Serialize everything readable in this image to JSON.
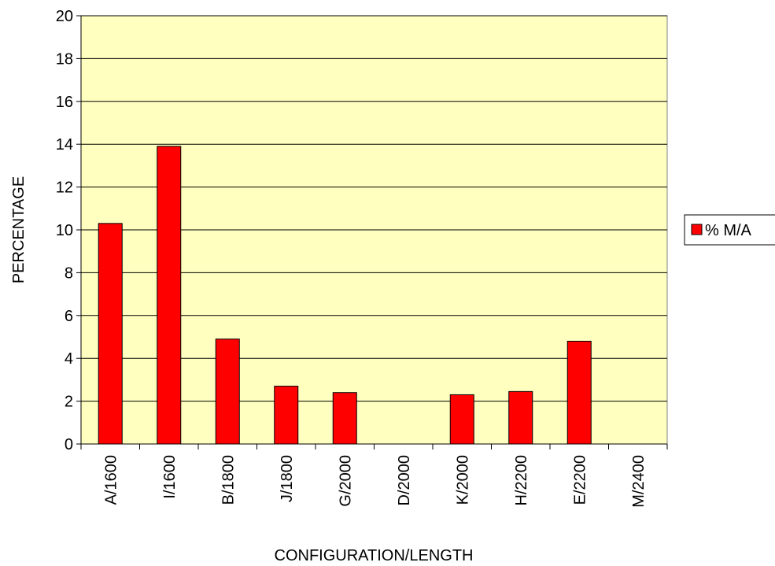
{
  "chart_data": {
    "type": "bar",
    "categories": [
      "A/1600",
      "I/1600",
      "B/1800",
      "J/1800",
      "G/2000",
      "D/2000",
      "K/2000",
      "H/2200",
      "E/2200",
      "M/2400"
    ],
    "series": [
      {
        "name": "% M/A",
        "color": "#ff0000",
        "values": [
          10.3,
          13.9,
          4.9,
          2.7,
          2.4,
          0,
          2.3,
          2.45,
          4.8,
          0
        ]
      }
    ],
    "ylim": [
      0,
      20
    ],
    "yticks": [
      0,
      2,
      4,
      6,
      8,
      10,
      12,
      14,
      16,
      18,
      20
    ],
    "y_label": "PERCENTAGE",
    "x_label": "CONFIGURATION/LENGTH",
    "grid": true,
    "legend": "right"
  }
}
